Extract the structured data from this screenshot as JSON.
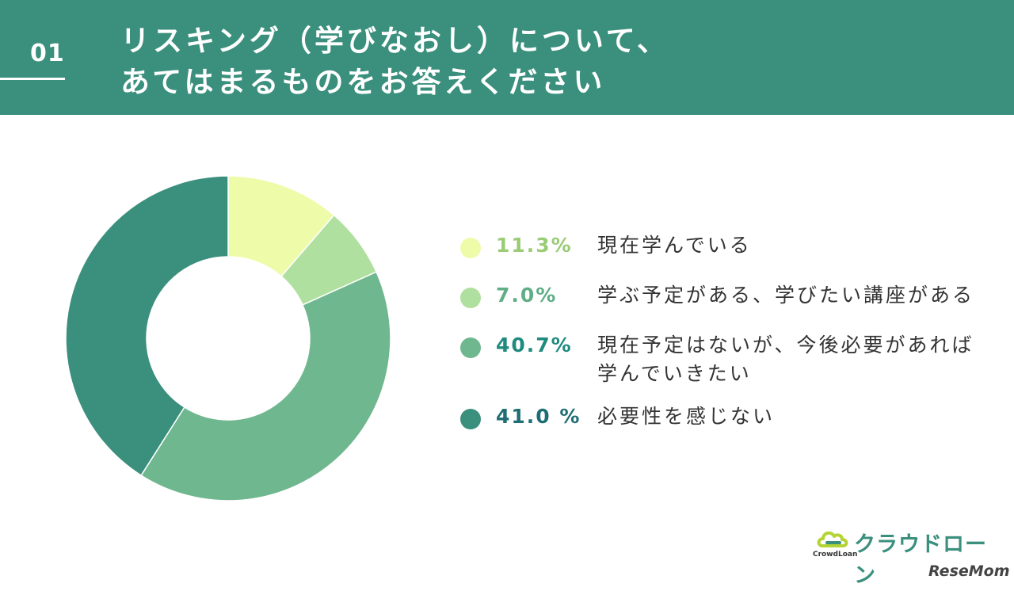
{
  "header": {
    "number": "01",
    "title_line1": "リスキング（学びなおし）について、",
    "title_line2": "あてはまるものをお答えください",
    "color": "#3a8f7d"
  },
  "chart_data": {
    "type": "pie",
    "donut": true,
    "categories": [
      "現在学んでいる",
      "学ぶ予定がある、学びたい講座がある",
      "現在予定はないが、今後必要があれば学んでいきたい",
      "必要性を感じない"
    ],
    "values": [
      11.3,
      7.0,
      40.7,
      41.0
    ],
    "colors": [
      "#eefca9",
      "#b0e09f",
      "#6fb78e",
      "#3a8f7d"
    ]
  },
  "legend": {
    "items": [
      {
        "pct": "11.3%",
        "lines": [
          "現在学んでいる"
        ],
        "color": "#eefca9",
        "pct_color": "#9acb75"
      },
      {
        "pct": "7.0%",
        "lines": [
          "学ぶ予定がある、学びたい講座がある"
        ],
        "color": "#b0e09f",
        "pct_color": "#5fae86"
      },
      {
        "pct": "40.7%",
        "lines": [
          "現在予定はないが、今後必要があれば",
          "学んでいきたい"
        ],
        "color": "#6fb78e",
        "pct_color": "#1f8a7e"
      },
      {
        "pct": "41.0 %",
        "lines": [
          "必要性を感じない"
        ],
        "color": "#3a8f7d",
        "pct_color": "#1f6e74"
      }
    ]
  },
  "brand": {
    "name": "クラウドローン",
    "sub": "CrowdLoan",
    "icon": "cloud-icon"
  },
  "watermark": "ReseMom"
}
